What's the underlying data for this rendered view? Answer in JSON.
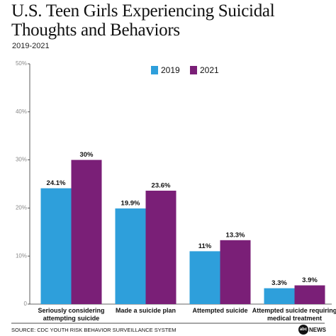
{
  "chart_data": {
    "type": "bar",
    "title": "U.S. Teen Girls Experiencing Suicidal Thoughts and Behaviors",
    "subtitle": "2019-2021",
    "categories": [
      "Seriously considering attempting suicide",
      "Made a suicide plan",
      "Attempted suicide",
      "Attempted suicide requiring medical treatment"
    ],
    "series": [
      {
        "name": "2019",
        "color": "#2e9fdb",
        "values": [
          24.1,
          19.9,
          11,
          3.3
        ],
        "value_labels": [
          "24.1%",
          "19.9%",
          "11%",
          "3.3%"
        ]
      },
      {
        "name": "2021",
        "color": "#7a1f77",
        "values": [
          30,
          23.6,
          13.3,
          3.9
        ],
        "value_labels": [
          "30%",
          "23.6%",
          "13.3%",
          "3.9%"
        ]
      }
    ],
    "ylim": [
      0,
      50
    ],
    "yticks": [
      0,
      {
        "value": 10,
        "label": "10%"
      },
      {
        "value": 20,
        "label": "20%"
      },
      {
        "value": 30,
        "label": "30%"
      },
      {
        "value": 40,
        "label": "40%"
      },
      {
        "value": 50,
        "label": "50%"
      }
    ],
    "legend": "top",
    "grid": false
  },
  "source": "SOURCE: CDC YOUTH RISK BEHAVIOR SURVEILLANCE SYSTEM",
  "logo": {
    "mark": "abc",
    "text": "NEWS"
  }
}
